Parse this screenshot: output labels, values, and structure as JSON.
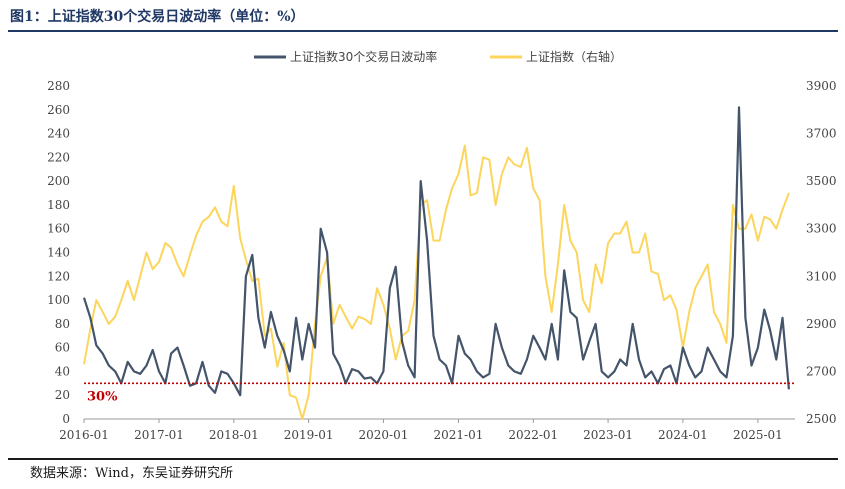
{
  "figure": {
    "title": "图1：上证指数30个交易日波动率（单位：%）",
    "source": "数据来源：Wind，东吴证券研究所"
  },
  "chart_data": {
    "type": "line",
    "x_ticks": [
      "2016-01",
      "2017-01",
      "2018-01",
      "2019-01",
      "2020-01",
      "2021-01",
      "2022-01",
      "2023-01",
      "2024-01",
      "2025-01"
    ],
    "x_range": [
      "2016-01-01",
      "2025-07-01"
    ],
    "y_left": {
      "ticks": [
        0,
        20,
        40,
        60,
        80,
        100,
        120,
        140,
        160,
        180,
        200,
        220,
        240,
        260,
        280
      ],
      "range": [
        0,
        280
      ]
    },
    "y_right": {
      "ticks": [
        2500,
        2700,
        2900,
        3100,
        3300,
        3500,
        3700,
        3900
      ],
      "range": [
        2500,
        3900
      ]
    },
    "reference_line": {
      "value": 30,
      "label": "30%",
      "color": "#c00000",
      "style": "dotted"
    },
    "legend": {
      "position": "top-center"
    },
    "series": [
      {
        "name": "上证指数30个交易日波动率",
        "axis": "left",
        "color": "#44546a",
        "x": [
          "2016-01",
          "2016-02",
          "2016-03",
          "2016-04",
          "2016-05",
          "2016-06",
          "2016-07",
          "2016-08",
          "2016-09",
          "2016-10",
          "2016-11",
          "2016-12",
          "2017-01",
          "2017-02",
          "2017-03",
          "2017-04",
          "2017-05",
          "2017-06",
          "2017-07",
          "2017-08",
          "2017-09",
          "2017-10",
          "2017-11",
          "2017-12",
          "2018-01",
          "2018-02",
          "2018-03",
          "2018-04",
          "2018-05",
          "2018-06",
          "2018-07",
          "2018-08",
          "2018-09",
          "2018-10",
          "2018-11",
          "2018-12",
          "2019-01",
          "2019-02",
          "2019-03",
          "2019-04",
          "2019-05",
          "2019-06",
          "2019-07",
          "2019-08",
          "2019-09",
          "2019-10",
          "2019-11",
          "2019-12",
          "2020-01",
          "2020-02",
          "2020-03",
          "2020-04",
          "2020-05",
          "2020-06",
          "2020-07",
          "2020-08",
          "2020-09",
          "2020-10",
          "2020-11",
          "2020-12",
          "2021-01",
          "2021-02",
          "2021-03",
          "2021-04",
          "2021-05",
          "2021-06",
          "2021-07",
          "2021-08",
          "2021-09",
          "2021-10",
          "2021-11",
          "2021-12",
          "2022-01",
          "2022-02",
          "2022-03",
          "2022-04",
          "2022-05",
          "2022-06",
          "2022-07",
          "2022-08",
          "2022-09",
          "2022-10",
          "2022-11",
          "2022-12",
          "2023-01",
          "2023-02",
          "2023-03",
          "2023-04",
          "2023-05",
          "2023-06",
          "2023-07",
          "2023-08",
          "2023-09",
          "2023-10",
          "2023-11",
          "2023-12",
          "2024-01",
          "2024-02",
          "2024-03",
          "2024-04",
          "2024-05",
          "2024-06",
          "2024-07",
          "2024-08",
          "2024-09",
          "2024-10",
          "2024-11",
          "2024-12",
          "2025-01",
          "2025-02",
          "2025-03",
          "2025-04",
          "2025-05",
          "2025-06"
        ],
        "values": [
          102,
          85,
          62,
          55,
          45,
          40,
          30,
          48,
          40,
          38,
          45,
          58,
          40,
          30,
          55,
          60,
          45,
          28,
          30,
          48,
          28,
          22,
          40,
          38,
          30,
          20,
          120,
          138,
          85,
          60,
          90,
          70,
          58,
          40,
          85,
          50,
          80,
          60,
          160,
          140,
          55,
          45,
          30,
          42,
          40,
          34,
          35,
          30,
          40,
          110,
          128,
          65,
          45,
          35,
          200,
          150,
          70,
          50,
          45,
          30,
          70,
          55,
          50,
          40,
          35,
          38,
          80,
          60,
          45,
          40,
          38,
          50,
          70,
          60,
          50,
          80,
          50,
          125,
          90,
          85,
          50,
          65,
          80,
          40,
          35,
          40,
          50,
          45,
          80,
          50,
          35,
          40,
          30,
          42,
          45,
          30,
          60,
          45,
          35,
          40,
          60,
          50,
          40,
          35,
          70,
          262,
          85,
          45,
          60,
          92,
          75,
          50,
          85,
          25
        ]
      },
      {
        "name": "上证指数（右轴）",
        "axis": "right",
        "color": "#fcd55d",
        "x": [
          "2016-01",
          "2016-02",
          "2016-03",
          "2016-04",
          "2016-05",
          "2016-06",
          "2016-07",
          "2016-08",
          "2016-09",
          "2016-10",
          "2016-11",
          "2016-12",
          "2017-01",
          "2017-02",
          "2017-03",
          "2017-04",
          "2017-05",
          "2017-06",
          "2017-07",
          "2017-08",
          "2017-09",
          "2017-10",
          "2017-11",
          "2017-12",
          "2018-01",
          "2018-02",
          "2018-03",
          "2018-04",
          "2018-05",
          "2018-06",
          "2018-07",
          "2018-08",
          "2018-09",
          "2018-10",
          "2018-11",
          "2018-12",
          "2019-01",
          "2019-02",
          "2019-03",
          "2019-04",
          "2019-05",
          "2019-06",
          "2019-07",
          "2019-08",
          "2019-09",
          "2019-10",
          "2019-11",
          "2019-12",
          "2020-01",
          "2020-02",
          "2020-03",
          "2020-04",
          "2020-05",
          "2020-06",
          "2020-07",
          "2020-08",
          "2020-09",
          "2020-10",
          "2020-11",
          "2020-12",
          "2021-01",
          "2021-02",
          "2021-03",
          "2021-04",
          "2021-05",
          "2021-06",
          "2021-07",
          "2021-08",
          "2021-09",
          "2021-10",
          "2021-11",
          "2021-12",
          "2022-01",
          "2022-02",
          "2022-03",
          "2022-04",
          "2022-05",
          "2022-06",
          "2022-07",
          "2022-08",
          "2022-09",
          "2022-10",
          "2022-11",
          "2022-12",
          "2023-01",
          "2023-02",
          "2023-03",
          "2023-04",
          "2023-05",
          "2023-06",
          "2023-07",
          "2023-08",
          "2023-09",
          "2023-10",
          "2023-11",
          "2023-12",
          "2024-01",
          "2024-02",
          "2024-03",
          "2024-04",
          "2024-05",
          "2024-06",
          "2024-07",
          "2024-08",
          "2024-09",
          "2024-10",
          "2024-11",
          "2024-12",
          "2025-01",
          "2025-02",
          "2025-03",
          "2025-04",
          "2025-05",
          "2025-06"
        ],
        "values": [
          2730,
          2880,
          3000,
          2950,
          2900,
          2930,
          3000,
          3080,
          3000,
          3100,
          3200,
          3130,
          3160,
          3240,
          3220,
          3150,
          3100,
          3190,
          3270,
          3330,
          3350,
          3390,
          3330,
          3310,
          3480,
          3260,
          3170,
          3080,
          3090,
          2850,
          2880,
          2720,
          2820,
          2600,
          2590,
          2500,
          2600,
          2900,
          3100,
          3180,
          2900,
          2980,
          2930,
          2880,
          2930,
          2920,
          2900,
          3050,
          2980,
          2880,
          2750,
          2850,
          2870,
          3000,
          3400,
          3420,
          3250,
          3250,
          3380,
          3470,
          3530,
          3650,
          3440,
          3450,
          3600,
          3590,
          3400,
          3530,
          3600,
          3570,
          3560,
          3640,
          3470,
          3420,
          3100,
          2950,
          3150,
          3400,
          3250,
          3200,
          3000,
          2950,
          3150,
          3070,
          3240,
          3280,
          3280,
          3330,
          3200,
          3200,
          3280,
          3120,
          3110,
          3000,
          3020,
          2960,
          2800,
          2950,
          3050,
          3100,
          3150,
          2950,
          2900,
          2820,
          3400,
          3300,
          3300,
          3360,
          3250,
          3350,
          3340,
          3300,
          3380,
          3450
        ]
      }
    ]
  }
}
